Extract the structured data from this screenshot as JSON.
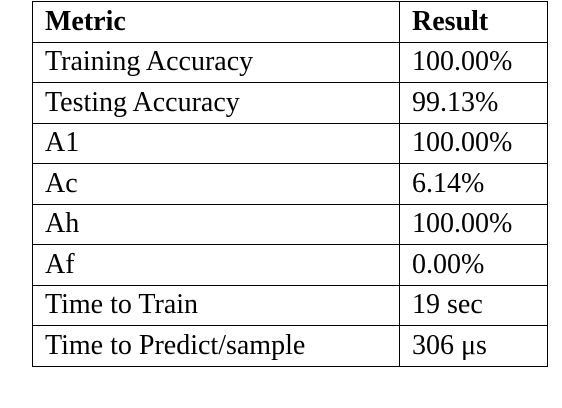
{
  "table": {
    "header": [
      "Metric",
      "Result"
    ],
    "rows": [
      [
        "Training Accuracy",
        "100.00%"
      ],
      [
        "Testing Accuracy",
        "99.13%"
      ],
      [
        "A1",
        "100.00%"
      ],
      [
        "Ac",
        "6.14%"
      ],
      [
        "Ah",
        "100.00%"
      ],
      [
        "Af",
        "0.00%"
      ],
      [
        "Time to Train",
        "19 sec"
      ],
      [
        "Time to Predict/sample",
        "306 μs"
      ]
    ]
  }
}
